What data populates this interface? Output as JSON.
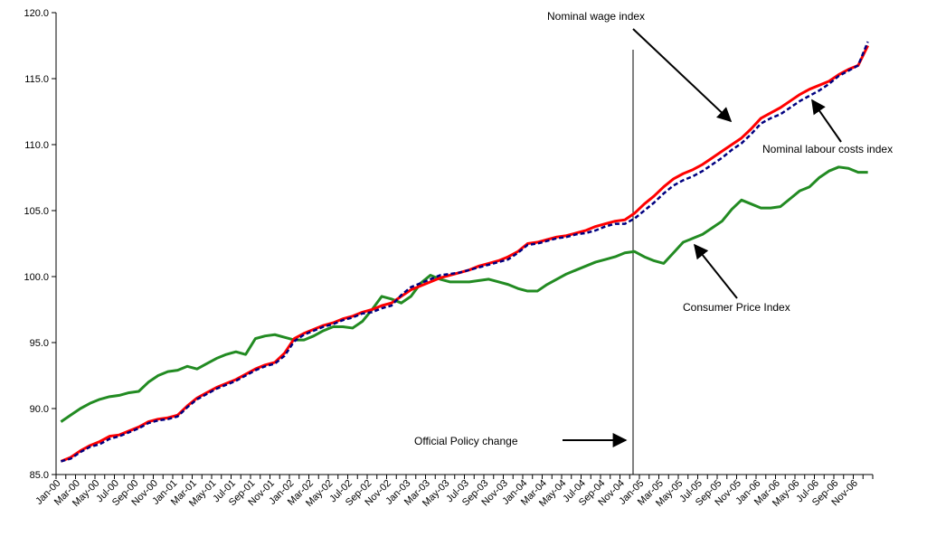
{
  "chart_data": {
    "type": "line",
    "categories": [
      "Jan-00",
      null,
      "Mar-00",
      null,
      "May-00",
      null,
      "Jul-00",
      null,
      "Sep-00",
      null,
      "Nov-00",
      null,
      "Jan-01",
      null,
      "Mar-01",
      null,
      "May-01",
      null,
      "Jul-01",
      null,
      "Sep-01",
      null,
      "Nov-01",
      null,
      "Jan-02",
      null,
      "Mar-02",
      null,
      "May-02",
      null,
      "Jul-02",
      null,
      "Sep-02",
      null,
      "Nov-02",
      null,
      "Jan-03",
      null,
      "Mar-03",
      null,
      "May-03",
      null,
      "Jul-03",
      null,
      "Sep-03",
      null,
      "Nov-03",
      null,
      "Jan-04",
      null,
      "Mar-04",
      null,
      "May-04",
      null,
      "Jul-04",
      null,
      "Sep-04",
      null,
      "Nov-04",
      null,
      "Jan-05",
      null,
      "Mar-05",
      null,
      "May-05",
      null,
      "Jul-05",
      null,
      "Sep-05",
      null,
      "Nov-05",
      null,
      "Jan-06",
      null,
      "Mar-06",
      null,
      "May-06",
      null,
      "Jul-06",
      null,
      "Sep-06",
      null,
      "Nov-06",
      null
    ],
    "series": [
      {
        "name": "Consumer Price Index",
        "color": "#228b22",
        "dashed": false,
        "values": [
          89.0,
          89.5,
          90.0,
          90.4,
          90.7,
          90.9,
          91.0,
          91.2,
          91.3,
          92.0,
          92.5,
          92.8,
          92.9,
          93.2,
          93.0,
          93.4,
          93.8,
          94.1,
          94.3,
          94.1,
          95.3,
          95.5,
          95.6,
          95.4,
          95.2,
          95.2,
          95.5,
          95.9,
          96.2,
          96.2,
          96.1,
          96.6,
          97.5,
          98.5,
          98.3,
          98.0,
          98.5,
          99.5,
          100.1,
          99.8,
          99.6,
          99.6,
          99.6,
          99.7,
          99.8,
          99.6,
          99.4,
          99.1,
          98.9,
          98.9,
          99.4,
          99.8,
          100.2,
          100.5,
          100.8,
          101.1,
          101.3,
          101.5,
          101.8,
          101.9,
          101.5,
          101.2,
          101.0,
          101.8,
          102.6,
          102.9,
          103.2,
          103.7,
          104.2,
          105.1,
          105.8,
          105.5,
          105.2,
          105.2,
          105.3,
          105.9,
          106.5,
          106.8,
          107.5,
          108.0,
          108.3,
          108.2,
          107.9,
          107.9
        ]
      },
      {
        "name": "Nominal wage index",
        "color": "#ff0000",
        "dashed": false,
        "values": [
          86.0,
          86.3,
          86.8,
          87.2,
          87.5,
          87.9,
          88.0,
          88.3,
          88.6,
          89.0,
          89.2,
          89.3,
          89.5,
          90.2,
          90.8,
          91.2,
          91.6,
          91.9,
          92.2,
          92.6,
          93.0,
          93.3,
          93.5,
          94.2,
          95.3,
          95.7,
          96.0,
          96.3,
          96.5,
          96.8,
          97.0,
          97.3,
          97.5,
          97.8,
          98.0,
          98.5,
          99.0,
          99.3,
          99.6,
          99.9,
          100.1,
          100.3,
          100.5,
          100.8,
          101.0,
          101.2,
          101.5,
          101.9,
          102.5,
          102.6,
          102.8,
          103.0,
          103.1,
          103.3,
          103.5,
          103.8,
          104.0,
          104.2,
          104.3,
          104.8,
          105.5,
          106.1,
          106.8,
          107.4,
          107.8,
          108.1,
          108.5,
          109.0,
          109.5,
          110.0,
          110.5,
          111.2,
          112.0,
          112.4,
          112.8,
          113.3,
          113.8,
          114.2,
          114.5,
          114.8,
          115.3,
          115.7,
          116.0,
          117.5
        ]
      },
      {
        "name": "Nominal labour costs index",
        "color": "#000080",
        "dashed": true,
        "values": [
          86.0,
          86.2,
          86.7,
          87.1,
          87.3,
          87.7,
          87.9,
          88.2,
          88.5,
          88.9,
          89.1,
          89.2,
          89.4,
          90.1,
          90.7,
          91.1,
          91.5,
          91.8,
          92.1,
          92.5,
          92.9,
          93.2,
          93.4,
          94.0,
          95.1,
          95.6,
          95.9,
          96.2,
          96.4,
          96.7,
          96.9,
          97.2,
          97.3,
          97.6,
          97.8,
          98.6,
          99.2,
          99.5,
          99.8,
          100.1,
          100.2,
          100.3,
          100.5,
          100.7,
          100.9,
          101.1,
          101.3,
          101.8,
          102.4,
          102.5,
          102.7,
          102.9,
          103.0,
          103.2,
          103.3,
          103.5,
          103.8,
          104.0,
          104.0,
          104.4,
          105.0,
          105.6,
          106.3,
          106.9,
          107.3,
          107.6,
          108.0,
          108.5,
          109.0,
          109.6,
          110.1,
          110.8,
          111.6,
          112.0,
          112.3,
          112.8,
          113.3,
          113.7,
          114.1,
          114.6,
          115.2,
          115.6,
          116.0,
          117.8
        ]
      }
    ],
    "annotations": [
      "Official Policy change"
    ],
    "ylim": [
      85,
      120
    ],
    "yticks": [
      {
        "value": 85,
        "label": "85.0"
      },
      {
        "value": 90,
        "label": "90.0"
      },
      {
        "value": 95,
        "label": "95.0"
      },
      {
        "value": 100,
        "label": "100.0"
      },
      {
        "value": 105,
        "label": "105.0"
      },
      {
        "value": 110,
        "label": "110.0"
      },
      {
        "value": 115,
        "label": "115.0"
      },
      {
        "value": 120,
        "label": "120.0"
      }
    ],
    "grid": false
  }
}
